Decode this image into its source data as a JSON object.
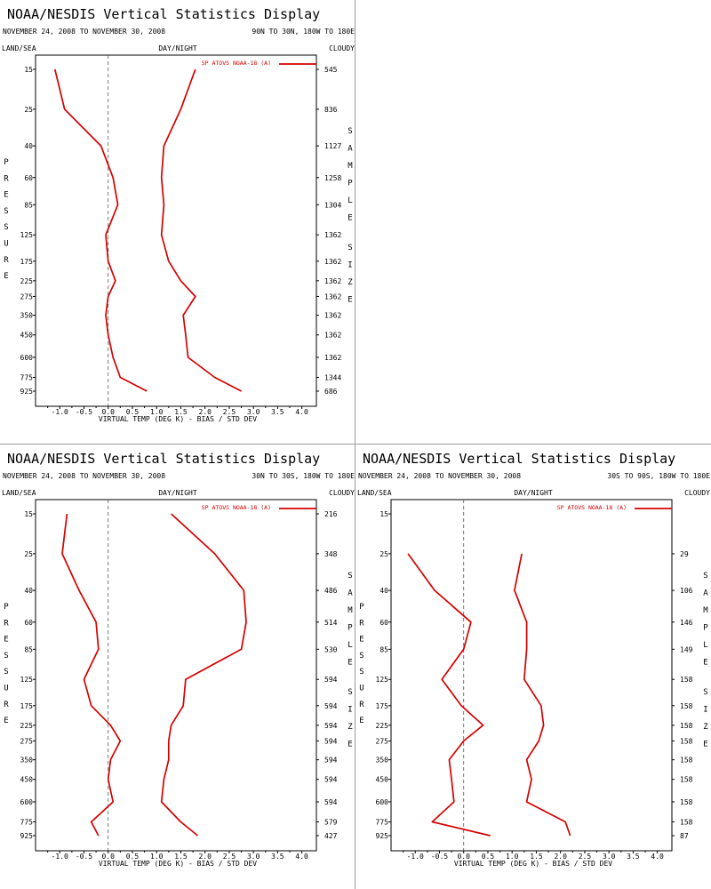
{
  "axis": {
    "pressure_levels": [
      15,
      25,
      40,
      60,
      85,
      125,
      175,
      225,
      275,
      350,
      450,
      600,
      775,
      925
    ],
    "xticks": [
      -1.0,
      -0.5,
      0.0,
      0.5,
      1.0,
      1.5,
      2.0,
      2.5,
      3.0,
      3.5,
      4.0
    ],
    "xtick_labels": [
      "-1.0",
      "-0.5",
      "0.0",
      "0.5",
      "1.0",
      "1.5",
      "2.0",
      "2.5",
      "3.0",
      "3.5",
      "4.0"
    ],
    "xlim": [
      -1.5,
      4.3
    ],
    "xlabel": "VIRTUAL TEMP (DEG K) - BIAS / STD DEV",
    "left_vertical_label": "PRESSURE",
    "right_vertical_label": [
      "SAMPLE",
      "SIZE"
    ]
  },
  "colors": {
    "series": "#d40000",
    "axes": "#000000",
    "zero_line": "#555555",
    "divider": "#9a9a9a"
  },
  "chart_data": [
    {
      "type": "line",
      "title": "NOAA/NESDIS Vertical Statistics Display",
      "date_range": "NOVEMBER 24, 2008 TO NOVEMBER 30, 2008",
      "region": "90N TO 30N, 180W TO 180E",
      "land_sea": "LAND/SEA",
      "day_night": "DAY/NIGHT",
      "cloudy": "CLOUDY",
      "legend": "SP ATOVS NOAA-18 (A)",
      "legend_placement": "top-right",
      "y": [
        15,
        25,
        40,
        60,
        85,
        125,
        175,
        225,
        275,
        350,
        450,
        600,
        775,
        925
      ],
      "sample_size": [
        "545",
        "836",
        "1127",
        "1258",
        "1304",
        "1362",
        "1362",
        "1362",
        "1362",
        "1362",
        "1362",
        "1362",
        "1344",
        "686"
      ],
      "series": [
        {
          "values": [
            -1.1,
            -0.9,
            -0.15,
            0.1,
            0.2,
            -0.05,
            0.0,
            0.15,
            0.0,
            -0.05,
            0.0,
            0.1,
            0.25,
            0.8
          ]
        },
        {
          "values": [
            1.8,
            1.5,
            1.15,
            1.1,
            1.15,
            1.1,
            1.25,
            1.5,
            1.8,
            1.55,
            1.6,
            1.65,
            2.2,
            2.75
          ]
        }
      ]
    },
    {
      "type": "line",
      "title": "NOAA/NESDIS Vertical Statistics Display",
      "date_range": "NOVEMBER 24, 2008 TO NOVEMBER 30, 2008",
      "region": "30N TO 30S, 180W TO 180E",
      "land_sea": "LAND/SEA",
      "day_night": "DAY/NIGHT",
      "cloudy": "CLOUDY",
      "legend": "SP ATOVS NOAA-18 (A)",
      "legend_placement": "top-right",
      "y": [
        15,
        25,
        40,
        60,
        85,
        125,
        175,
        225,
        275,
        350,
        450,
        600,
        775,
        925
      ],
      "sample_size": [
        "216",
        "348",
        "486",
        "514",
        "530",
        "594",
        "594",
        "594",
        "594",
        "594",
        "594",
        "594",
        "579",
        "427"
      ],
      "series": [
        {
          "values": [
            -0.85,
            -0.95,
            -0.6,
            -0.25,
            -0.2,
            -0.5,
            -0.35,
            0.05,
            0.25,
            0.05,
            0.0,
            0.1,
            -0.35,
            -0.2
          ]
        },
        {
          "values": [
            1.3,
            2.2,
            2.8,
            2.85,
            2.75,
            1.6,
            1.55,
            1.3,
            1.25,
            1.25,
            1.15,
            1.1,
            1.5,
            1.85
          ]
        }
      ]
    },
    {
      "type": "line",
      "title": "NOAA/NESDIS Vertical Statistics Display",
      "date_range": "NOVEMBER 24, 2008 TO NOVEMBER 30, 2008",
      "region": "30S TO 90S, 180W TO 180E",
      "land_sea": "LAND/SEA",
      "day_night": "DAY/NIGHT",
      "cloudy": "CLOUDY",
      "legend": "SP ATOVS NOAA-18 (A)",
      "legend_placement": "top-right",
      "y": [
        25,
        40,
        60,
        85,
        125,
        175,
        225,
        275,
        350,
        450,
        600,
        775,
        925
      ],
      "sample_size": [
        "29",
        "106",
        "146",
        "149",
        "158",
        "158",
        "158",
        "158",
        "158",
        "158",
        "158",
        "158",
        "87"
      ],
      "series": [
        {
          "values": [
            -1.15,
            -0.6,
            0.15,
            0.0,
            -0.45,
            -0.05,
            0.4,
            0.0,
            -0.3,
            -0.25,
            -0.2,
            -0.65,
            0.55
          ]
        },
        {
          "values": [
            1.2,
            1.05,
            1.3,
            1.3,
            1.25,
            1.6,
            1.65,
            1.55,
            1.3,
            1.4,
            1.3,
            2.1,
            2.2
          ]
        }
      ]
    }
  ]
}
